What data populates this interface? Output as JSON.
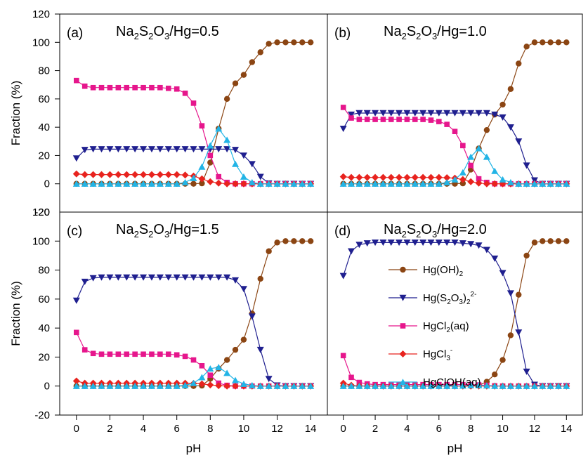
{
  "chart_data": {
    "type": "line",
    "layout": "2x2 panels",
    "xlabel": "pH",
    "ylabel": "Fraction (%)",
    "xlim": [
      -1,
      15
    ],
    "ylim": [
      -20,
      120
    ],
    "xticks": [
      0,
      2,
      4,
      6,
      8,
      10,
      12,
      14
    ],
    "yticks": [
      -20,
      0,
      20,
      40,
      60,
      80,
      100,
      120
    ],
    "x": [
      0,
      0.5,
      1,
      1.5,
      2,
      2.5,
      3,
      3.5,
      4,
      4.5,
      5,
      5.5,
      6,
      6.5,
      7,
      7.5,
      8,
      8.5,
      9,
      9.5,
      10,
      10.5,
      11,
      11.5,
      12,
      12.5,
      13,
      13.5,
      14
    ],
    "legend": {
      "placement": "inside panel (d), center-left",
      "entries": [
        {
          "prefix": "Hg(OH)",
          "sub": "2",
          "sup": "",
          "suffix": "",
          "color": "#8B4513",
          "marker": "circle"
        },
        {
          "prefix": "Hg(S",
          "sub": "2",
          "mid": "O",
          "sub2": "3",
          "close": ")",
          "sub3": "2",
          "sup": "2-",
          "color": "#1F1F8F",
          "marker": "triangle-down"
        },
        {
          "prefix": "HgCl",
          "sub": "2",
          "suffix": "(aq)",
          "color": "#E6168C",
          "marker": "square"
        },
        {
          "prefix": "HgCl",
          "sub": "3",
          "sup": "-",
          "color": "#E8231E",
          "marker": "diamond"
        },
        {
          "prefix": "HgClOH(aq)",
          "color": "#22B4E6",
          "marker": "triangle-up"
        }
      ]
    },
    "panels": [
      {
        "label": "(a)",
        "title": {
          "a": "Na",
          "s1": "2",
          "b": "S",
          "s2": "2",
          "c": "O",
          "s3": "3",
          "d": "/Hg=0.5"
        },
        "series": [
          {
            "name": "Hg(OH)2",
            "values": [
              0,
              0,
              0,
              0,
              0,
              0,
              0,
              0,
              0,
              0,
              0,
              0,
              0,
              0,
              0,
              0.3,
              15,
              39,
              60,
              71,
              77,
              86,
              93,
              99,
              100,
              100,
              100,
              100,
              100
            ]
          },
          {
            "name": "Hg(S2O3)2 2-",
            "values": [
              18,
              24,
              24.5,
              24.5,
              24.5,
              24.5,
              24.5,
              24.5,
              24.5,
              24.5,
              24.5,
              24.5,
              24.5,
              24.5,
              24.5,
              24.5,
              24.5,
              24.5,
              24.5,
              24,
              20,
              14,
              5,
              0.3,
              0,
              0,
              0,
              0,
              0
            ]
          },
          {
            "name": "HgCl2(aq)",
            "values": [
              73,
              69,
              68,
              68,
              68,
              68,
              68,
              68,
              68,
              68,
              68,
              67.5,
              67,
              64,
              57,
              41,
              20,
              5,
              1,
              0,
              0,
              0,
              0,
              0,
              0,
              0,
              0,
              0,
              0
            ]
          },
          {
            "name": "HgCl3-",
            "values": [
              7,
              6.5,
              6.5,
              6.5,
              6.5,
              6.5,
              6.5,
              6.5,
              6.5,
              6.5,
              6.5,
              6.5,
              6.5,
              6.2,
              5.5,
              3.5,
              1.5,
              0.5,
              0,
              0,
              0,
              0,
              0,
              0,
              0,
              0,
              0,
              0,
              0
            ]
          },
          {
            "name": "HgClOH(aq)",
            "values": [
              0,
              0,
              0,
              0,
              0,
              0,
              0,
              0,
              0,
              0,
              0,
              0,
              0,
              1,
              4,
              12,
              27,
              39,
              31,
              14,
              5,
              1,
              0,
              0,
              0,
              0,
              0,
              0,
              0
            ]
          }
        ]
      },
      {
        "label": "(b)",
        "title": {
          "a": "Na",
          "s1": "2",
          "b": "S",
          "s2": "2",
          "c": "O",
          "s3": "3",
          "d": "/Hg=1.0"
        },
        "series": [
          {
            "name": "Hg(OH)2",
            "values": [
              0,
              0,
              0,
              0,
              0,
              0,
              0,
              0,
              0,
              0,
              0,
              0,
              0,
              0,
              0,
              0.3,
              10,
              25,
              38,
              49,
              56,
              67,
              85,
              97,
              100,
              100,
              100,
              100,
              100
            ]
          },
          {
            "name": "Hg(S2O3)2 2-",
            "values": [
              39,
              49,
              50,
              50,
              50,
              50,
              50,
              50,
              50,
              50,
              50,
              50,
              50,
              50,
              50,
              50,
              50,
              50,
              50,
              49,
              47,
              40,
              30,
              13,
              2.5,
              0,
              0,
              0,
              0
            ]
          },
          {
            "name": "HgCl2(aq)",
            "values": [
              54,
              46.5,
              45.5,
              45.5,
              45.5,
              45.5,
              45.5,
              45.5,
              45.5,
              45.5,
              45.5,
              45,
              44,
              42,
              37,
              27,
              13,
              3.5,
              1,
              0,
              0,
              0,
              0,
              0,
              0,
              0,
              0,
              0,
              0
            ]
          },
          {
            "name": "HgCl3-",
            "values": [
              5,
              4.5,
              4.5,
              4.5,
              4.5,
              4.5,
              4.5,
              4.5,
              4.5,
              4.5,
              4.5,
              4.5,
              4.5,
              4.3,
              4,
              3,
              1.5,
              0.5,
              0,
              0,
              0,
              0,
              0,
              0,
              0,
              0,
              0,
              0,
              0
            ]
          },
          {
            "name": "HgClOH(aq)",
            "values": [
              0,
              0,
              0,
              0,
              0,
              0,
              0,
              0,
              0,
              0,
              0,
              0,
              0,
              1,
              3,
              8,
              19,
              25,
              19,
              9,
              3,
              1,
              0,
              0,
              0,
              0,
              0,
              0,
              0
            ]
          }
        ]
      },
      {
        "label": "(c)",
        "title": {
          "a": "Na",
          "s1": "2",
          "b": "S",
          "s2": "2",
          "c": "O",
          "s3": "3",
          "d": "/Hg=1.5"
        },
        "series": [
          {
            "name": "Hg(OH)2",
            "values": [
              0,
              0,
              0,
              0,
              0,
              0,
              0,
              0,
              0,
              0,
              0,
              0,
              0,
              0,
              0,
              0.3,
              5,
              12,
              18,
              25,
              32,
              50,
              74,
              93,
              99,
              100,
              100,
              100,
              100
            ]
          },
          {
            "name": "Hg(S2O3)2 2-",
            "values": [
              59,
              72,
              74.5,
              75,
              75,
              75,
              75,
              75,
              75,
              75,
              75,
              75,
              75,
              75,
              75,
              75,
              75,
              75,
              75,
              73,
              67,
              48,
              25,
              5,
              0.5,
              0,
              0,
              0,
              0
            ]
          },
          {
            "name": "HgCl2(aq)",
            "values": [
              37,
              25,
              22.5,
              22,
              22,
              22,
              22,
              22,
              22,
              22,
              22,
              22,
              21.5,
              20.5,
              18,
              14,
              7.5,
              2,
              0.5,
              0,
              0,
              0,
              0,
              0,
              0,
              0,
              0,
              0,
              0
            ]
          },
          {
            "name": "HgCl3-",
            "values": [
              3.5,
              2,
              2,
              2,
              2,
              2,
              2,
              2,
              2,
              2,
              2,
              2,
              2,
              2,
              1.8,
              1.5,
              0.8,
              0.3,
              0,
              0,
              0,
              0,
              0,
              0,
              0,
              0,
              0,
              0,
              0
            ]
          },
          {
            "name": "HgClOH(aq)",
            "values": [
              0,
              0,
              0,
              0,
              0,
              0,
              0,
              0,
              0,
              0,
              0,
              0,
              0,
              0.5,
              2,
              6,
              12,
              13,
              9,
              4,
              1.5,
              0.5,
              0,
              0,
              0,
              0,
              0,
              0,
              0
            ]
          }
        ]
      },
      {
        "label": "(d)",
        "title": {
          "a": "Na",
          "s1": "2",
          "b": "S",
          "s2": "2",
          "c": "O",
          "s3": "3",
          "d": "/Hg=2.0"
        },
        "series": [
          {
            "name": "Hg(OH)2",
            "values": [
              0,
              0,
              0,
              0,
              0,
              0,
              0,
              0,
              0,
              0,
              0,
              0,
              0,
              0,
              0,
              0,
              0,
              0.5,
              3,
              8,
              18,
              35,
              63,
              90,
              99,
              100,
              100,
              100,
              100
            ]
          },
          {
            "name": "Hg(S2O3)2 2-",
            "values": [
              76,
              93,
              97.5,
              98.5,
              99,
              99,
              99,
              99,
              99,
              99,
              99,
              99,
              99,
              99,
              99,
              98.5,
              98,
              97,
              94,
              88,
              78,
              64,
              37,
              10,
              1,
              0,
              0,
              0,
              0
            ]
          },
          {
            "name": "HgCl2(aq)",
            "values": [
              21,
              6,
              2.5,
              1.5,
              1,
              1,
              1,
              1,
              1,
              1,
              1,
              1,
              1,
              1,
              1,
              1,
              1,
              0.8,
              0.5,
              0.2,
              0,
              0,
              0,
              0,
              0,
              0,
              0,
              0,
              0
            ]
          },
          {
            "name": "HgCl3-",
            "values": [
              2,
              0.5,
              0.2,
              0,
              0,
              0,
              0,
              0,
              0,
              0,
              0,
              0,
              0,
              0,
              0,
              0,
              0,
              0,
              0,
              0,
              0,
              0,
              0,
              0,
              0,
              0,
              0,
              0,
              0
            ]
          },
          {
            "name": "HgClOH(aq)",
            "values": [
              0,
              0,
              0,
              0,
              0,
              0,
              0,
              0,
              0,
              0,
              0,
              0,
              0,
              0,
              0,
              0.2,
              0.5,
              0.5,
              0.3,
              0.1,
              0,
              0,
              0,
              0,
              0,
              0,
              0,
              0,
              0
            ]
          }
        ]
      }
    ]
  }
}
